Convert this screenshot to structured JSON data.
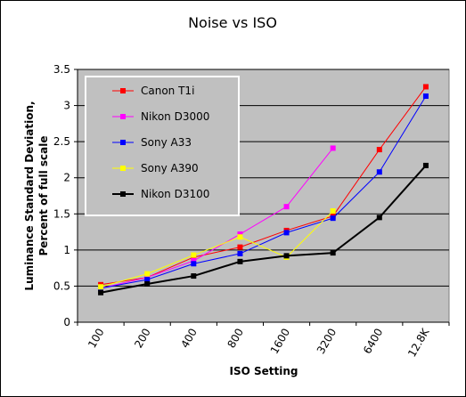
{
  "chart_data": {
    "type": "line",
    "title": "Noise vs ISO",
    "xlabel": "ISO Setting",
    "ylabel": "Luminance Standard Deviation, Percent of full scale",
    "ylabel_lines": [
      "Luminance Standard Deviation,",
      "Percent of full scale"
    ],
    "categories": [
      "100",
      "200",
      "400",
      "800",
      "1600",
      "3200",
      "6400",
      "12.8K"
    ],
    "yticks": [
      "0",
      "0.5",
      "1",
      "1.5",
      "2",
      "2.5",
      "3",
      "3.5"
    ],
    "ylim": [
      0,
      3.5
    ],
    "grid": true,
    "legend_position": "top-left",
    "plot_background": "#c0c0c0",
    "series": [
      {
        "name": "Canon T1i",
        "color": "#ff0000",
        "values": [
          0.52,
          0.62,
          0.9,
          1.04,
          1.27,
          1.47,
          2.39,
          3.26
        ]
      },
      {
        "name": "Nikon D3000",
        "color": "#ff00ff",
        "values": [
          0.47,
          0.62,
          0.85,
          1.22,
          1.6,
          2.41,
          null,
          null
        ]
      },
      {
        "name": "Sony A33",
        "color": "#0000ff",
        "values": [
          0.47,
          0.59,
          0.81,
          0.95,
          1.24,
          1.44,
          2.08,
          3.13
        ]
      },
      {
        "name": "Sony A390",
        "color": "#ffff00",
        "values": [
          0.49,
          0.67,
          0.93,
          1.18,
          0.9,
          1.54,
          null,
          null
        ]
      },
      {
        "name": "Nikon D3100",
        "color": "#000000",
        "values": [
          0.41,
          0.53,
          0.64,
          0.84,
          0.92,
          0.96,
          1.45,
          2.17
        ]
      }
    ]
  }
}
